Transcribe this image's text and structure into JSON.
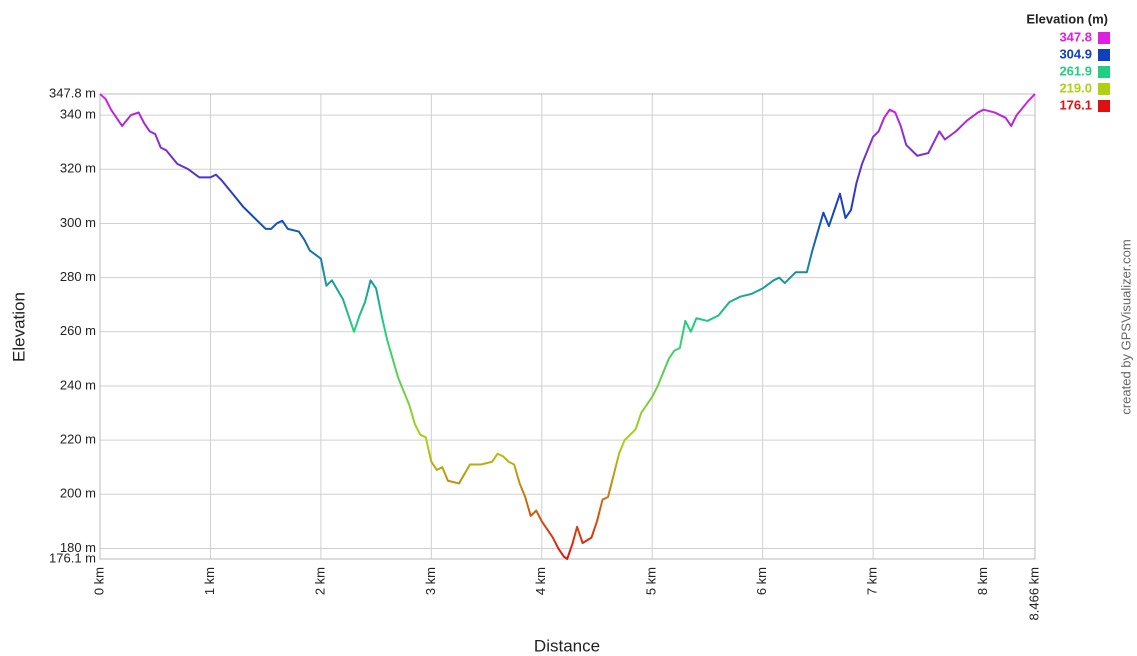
{
  "chart_data": {
    "type": "line",
    "x_label": "Distance",
    "y_label": "Elevation",
    "credit": "created by GPSVisualizer.com",
    "legend_title": "Elevation (m)",
    "color_scale": [
      {
        "value": 347.8,
        "color": "#e020e0"
      },
      {
        "value": 304.9,
        "color": "#1040c0"
      },
      {
        "value": 261.9,
        "color": "#20d080"
      },
      {
        "value": 219,
        "label": "219.0",
        "color": "#b0d010"
      },
      {
        "value": 176.1,
        "color": "#e01010"
      }
    ],
    "xlim": [
      0,
      8.466
    ],
    "ylim": [
      176.1,
      347.8
    ],
    "xticks": [
      {
        "value": 0,
        "label": "0 km"
      },
      {
        "value": 1,
        "label": "1 km"
      },
      {
        "value": 2,
        "label": "2 km"
      },
      {
        "value": 3,
        "label": "3 km"
      },
      {
        "value": 4,
        "label": "4 km"
      },
      {
        "value": 5,
        "label": "5 km"
      },
      {
        "value": 6,
        "label": "6 km"
      },
      {
        "value": 7,
        "label": "7 km"
      },
      {
        "value": 8,
        "label": "8 km"
      },
      {
        "value": 8.466,
        "label": "8.466 km"
      }
    ],
    "yticks": [
      {
        "value": 176.1,
        "label": "176.1 m"
      },
      {
        "value": 180,
        "label": "180 m"
      },
      {
        "value": 200,
        "label": "200 m"
      },
      {
        "value": 220,
        "label": "220 m"
      },
      {
        "value": 240,
        "label": "240 m"
      },
      {
        "value": 260,
        "label": "260 m"
      },
      {
        "value": 280,
        "label": "280 m"
      },
      {
        "value": 300,
        "label": "300 m"
      },
      {
        "value": 320,
        "label": "320 m"
      },
      {
        "value": 340,
        "label": "340 m"
      },
      {
        "value": 347.8,
        "label": "347.8 m"
      }
    ],
    "grid": true,
    "series": [
      {
        "name": "Elevation",
        "x": [
          0,
          0.05,
          0.1,
          0.2,
          0.28,
          0.35,
          0.4,
          0.45,
          0.5,
          0.55,
          0.6,
          0.7,
          0.8,
          0.9,
          1.0,
          1.05,
          1.1,
          1.2,
          1.3,
          1.4,
          1.5,
          1.55,
          1.6,
          1.65,
          1.7,
          1.8,
          1.85,
          1.9,
          2.0,
          2.05,
          2.1,
          2.2,
          2.3,
          2.35,
          2.4,
          2.45,
          2.5,
          2.55,
          2.6,
          2.7,
          2.8,
          2.85,
          2.9,
          2.95,
          3.0,
          3.05,
          3.1,
          3.15,
          3.25,
          3.35,
          3.45,
          3.55,
          3.6,
          3.65,
          3.7,
          3.75,
          3.8,
          3.85,
          3.9,
          3.95,
          4.0,
          4.05,
          4.1,
          4.15,
          4.2,
          4.23,
          4.28,
          4.32,
          4.37,
          4.45,
          4.5,
          4.55,
          4.6,
          4.65,
          4.7,
          4.75,
          4.85,
          4.9,
          5.0,
          5.05,
          5.1,
          5.15,
          5.2,
          5.25,
          5.3,
          5.35,
          5.4,
          5.5,
          5.6,
          5.7,
          5.8,
          5.9,
          6.0,
          6.1,
          6.15,
          6.2,
          6.3,
          6.4,
          6.45,
          6.5,
          6.55,
          6.6,
          6.65,
          6.7,
          6.75,
          6.8,
          6.85,
          6.9,
          7.0,
          7.05,
          7.1,
          7.15,
          7.2,
          7.25,
          7.3,
          7.4,
          7.5,
          7.55,
          7.6,
          7.65,
          7.75,
          7.85,
          7.95,
          8.0,
          8.1,
          8.2,
          8.25,
          8.3,
          8.4,
          8.466
        ],
        "values": [
          347.8,
          346,
          342,
          336,
          340,
          341,
          337,
          334,
          333,
          328,
          327,
          322,
          320,
          317,
          317,
          318,
          316,
          311,
          306,
          302,
          298,
          298,
          300,
          301,
          298,
          297,
          294,
          290,
          287,
          277,
          279,
          272,
          260,
          266,
          271,
          279,
          276,
          266,
          257,
          243,
          233,
          226,
          222,
          221,
          212,
          209,
          210,
          205,
          204,
          211,
          211,
          212,
          215,
          214,
          212,
          211,
          204,
          199,
          192,
          194,
          190,
          187,
          184,
          180,
          177,
          176.1,
          182,
          188,
          182,
          184,
          190,
          198,
          199,
          207,
          215,
          220,
          224,
          230,
          236,
          240,
          245,
          250,
          253,
          254,
          264,
          260,
          265,
          264,
          266,
          271,
          273,
          274,
          276,
          279,
          280,
          278,
          282,
          282,
          290,
          297,
          304,
          299,
          305,
          311,
          302,
          305,
          315,
          322,
          332,
          334,
          339,
          342,
          341,
          336,
          329,
          325,
          326,
          330,
          334,
          331,
          334,
          338,
          341,
          342,
          341,
          339,
          336,
          340,
          345,
          347.8
        ]
      }
    ]
  }
}
